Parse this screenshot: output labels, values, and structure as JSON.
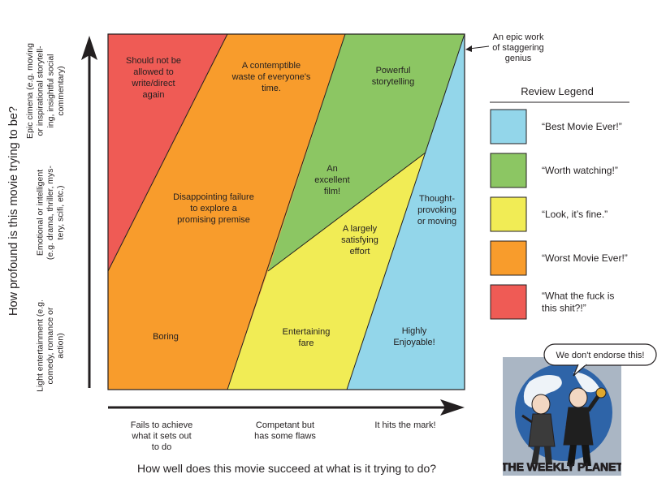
{
  "y_axis": {
    "title": "How profound is this movie trying to be?",
    "levels": [
      {
        "lines": [
          "Epic cimena (e.g. moving",
          "or inspirational storytell-",
          "ing, insightful social",
          "commentary)"
        ]
      },
      {
        "lines": [
          "Emotional or intelligent",
          "(e.g. drama, thriller, mys-",
          "tery, scifi, etc.)"
        ]
      },
      {
        "lines": [
          "Light entertainment (e.g.",
          "comedy, romance or",
          "action)"
        ]
      }
    ]
  },
  "x_axis": {
    "title": "How well does this movie succeed at what is it trying to do?",
    "levels": [
      {
        "lines": [
          "Fails to achieve",
          "what it sets out",
          "to do"
        ]
      },
      {
        "lines": [
          "Competant but",
          "has some flaws"
        ]
      },
      {
        "lines": [
          "It hits the mark!"
        ]
      }
    ]
  },
  "regions": [
    {
      "id": "red",
      "color": "#ef5b55",
      "lines": [
        "Should not be",
        "allowed to",
        "write/direct",
        "again"
      ]
    },
    {
      "id": "orange-top",
      "color": "#f89c2c",
      "lines": [
        "A contemptible",
        "waste of everyone's",
        "time."
      ]
    },
    {
      "id": "orange-mid",
      "color": "#f89c2c",
      "lines": [
        "Disappointing failure",
        "to explore a",
        "promising premise"
      ]
    },
    {
      "id": "orange-low",
      "color": "#f89c2c",
      "lines": [
        "Boring"
      ]
    },
    {
      "id": "green-top",
      "color": "#8cc663",
      "lines": [
        "Powerful",
        "storytelling"
      ]
    },
    {
      "id": "green-mid",
      "color": "#8cc663",
      "lines": [
        "An",
        "excellent",
        "film!"
      ]
    },
    {
      "id": "yellow-mid",
      "color": "#f1ec55",
      "lines": [
        "A largely",
        "satisfying",
        "effort"
      ]
    },
    {
      "id": "yellow-low",
      "color": "#f1ec55",
      "lines": [
        "Entertaining",
        "fare"
      ]
    },
    {
      "id": "blue-mid",
      "color": "#93d6ea",
      "lines": [
        "Thought-",
        "provoking",
        "or moving"
      ]
    },
    {
      "id": "blue-low",
      "color": "#93d6ea",
      "lines": [
        "Highly",
        "Enjoyable!"
      ]
    }
  ],
  "corner_note": {
    "lines": [
      "An epic work",
      "of staggering",
      "genius"
    ]
  },
  "legend": {
    "title": "Review Legend",
    "items": [
      {
        "color": "#93d6ea",
        "lines": [
          "“Best Movie Ever!”"
        ]
      },
      {
        "color": "#8cc663",
        "lines": [
          "“Worth watching!”"
        ]
      },
      {
        "color": "#f1ec55",
        "lines": [
          "“Look, it’s fine.”"
        ]
      },
      {
        "color": "#f89c2c",
        "lines": [
          "“Worst Movie Ever!”"
        ]
      },
      {
        "color": "#ef5b55",
        "lines": [
          "“What the fuck is",
          "this shit?!”"
        ]
      }
    ]
  },
  "logo": {
    "speech": "We don't endorse this!",
    "name": "THE WEEKLY PLANET"
  }
}
